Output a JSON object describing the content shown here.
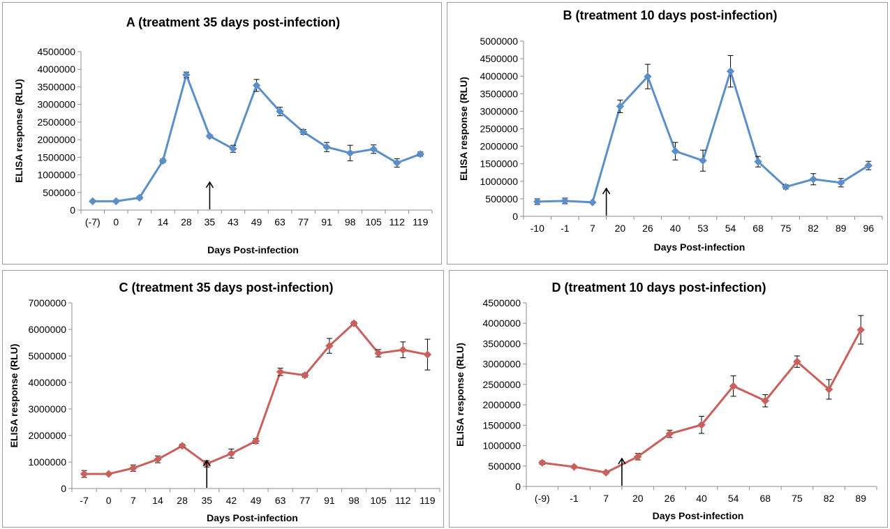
{
  "chart_data": [
    {
      "id": "A",
      "type": "line",
      "title": "A (treatment 35 days post-infection)",
      "xlabel": "Days Post-infection",
      "ylabel": "ELISA response (RLU)",
      "categories": [
        "(-7)",
        "0",
        "7",
        "14",
        "28",
        "35",
        "43",
        "49",
        "63",
        "77",
        "91",
        "98",
        "105",
        "112",
        "119"
      ],
      "values": [
        250000,
        250000,
        350000,
        1400000,
        3840000,
        2100000,
        1740000,
        3540000,
        2800000,
        2220000,
        1790000,
        1620000,
        1730000,
        1340000,
        1590000
      ],
      "errors": [
        30000,
        30000,
        40000,
        50000,
        80000,
        40000,
        100000,
        170000,
        120000,
        70000,
        130000,
        220000,
        120000,
        120000,
        60000
      ],
      "ylim": [
        0,
        4500000
      ],
      "ytick_step": 500000,
      "arrow_at_category": "35",
      "color": "#5b8fc9",
      "grid": false
    },
    {
      "id": "B",
      "type": "line",
      "title": "B (treatment 10 days post-infection)",
      "xlabel": "Days Post-infection",
      "ylabel": "ELISA response (RLU)",
      "categories": [
        "-10",
        "-1",
        "7",
        "20",
        "26",
        "40",
        "53",
        "54",
        "68",
        "75",
        "82",
        "89",
        "96"
      ],
      "values": [
        420000,
        440000,
        400000,
        3140000,
        3990000,
        1860000,
        1590000,
        4140000,
        1560000,
        840000,
        1060000,
        960000,
        1450000
      ],
      "errors": [
        80000,
        80000,
        20000,
        180000,
        350000,
        250000,
        300000,
        450000,
        150000,
        60000,
        160000,
        120000,
        120000
      ],
      "ylim": [
        0,
        5000000
      ],
      "ytick_step": 500000,
      "arrow_at_index": 2.5,
      "color": "#5b8fc9",
      "grid": false
    },
    {
      "id": "C",
      "type": "line",
      "title": "C (treatment 35 days post-infection)",
      "xlabel": "Days Post-infection",
      "ylabel": "ELISA response (RLU)",
      "categories": [
        "-7",
        "0",
        "7",
        "14",
        "28",
        "35",
        "42",
        "49",
        "63",
        "77",
        "91",
        "98",
        "105",
        "112",
        "119"
      ],
      "values": [
        550000,
        550000,
        770000,
        1100000,
        1610000,
        930000,
        1320000,
        1790000,
        4400000,
        4270000,
        5380000,
        6230000,
        5100000,
        5230000,
        5050000
      ],
      "errors": [
        130000,
        40000,
        120000,
        130000,
        60000,
        120000,
        170000,
        90000,
        140000,
        70000,
        280000,
        60000,
        140000,
        300000,
        580000
      ],
      "ylim": [
        0,
        7000000
      ],
      "ytick_step": 1000000,
      "arrow_at_category": "35",
      "color": "#c9605b",
      "grid": false
    },
    {
      "id": "D",
      "type": "line",
      "title": "D (treatment 10 days post-infection)",
      "xlabel": "Days Post-infection",
      "ylabel": "ELISA response (RLU)",
      "categories": [
        "(-9)",
        "-1",
        "7",
        "20",
        "26",
        "40",
        "54",
        "68",
        "75",
        "82",
        "89"
      ],
      "values": [
        580000,
        480000,
        340000,
        730000,
        1290000,
        1510000,
        2460000,
        2100000,
        3060000,
        2380000,
        3840000
      ],
      "errors": [
        40000,
        30000,
        30000,
        80000,
        90000,
        210000,
        250000,
        150000,
        140000,
        240000,
        350000
      ],
      "ylim": [
        0,
        4500000
      ],
      "ytick_step": 500000,
      "arrow_at_index": 2.5,
      "color": "#c9605b",
      "grid": false
    }
  ]
}
